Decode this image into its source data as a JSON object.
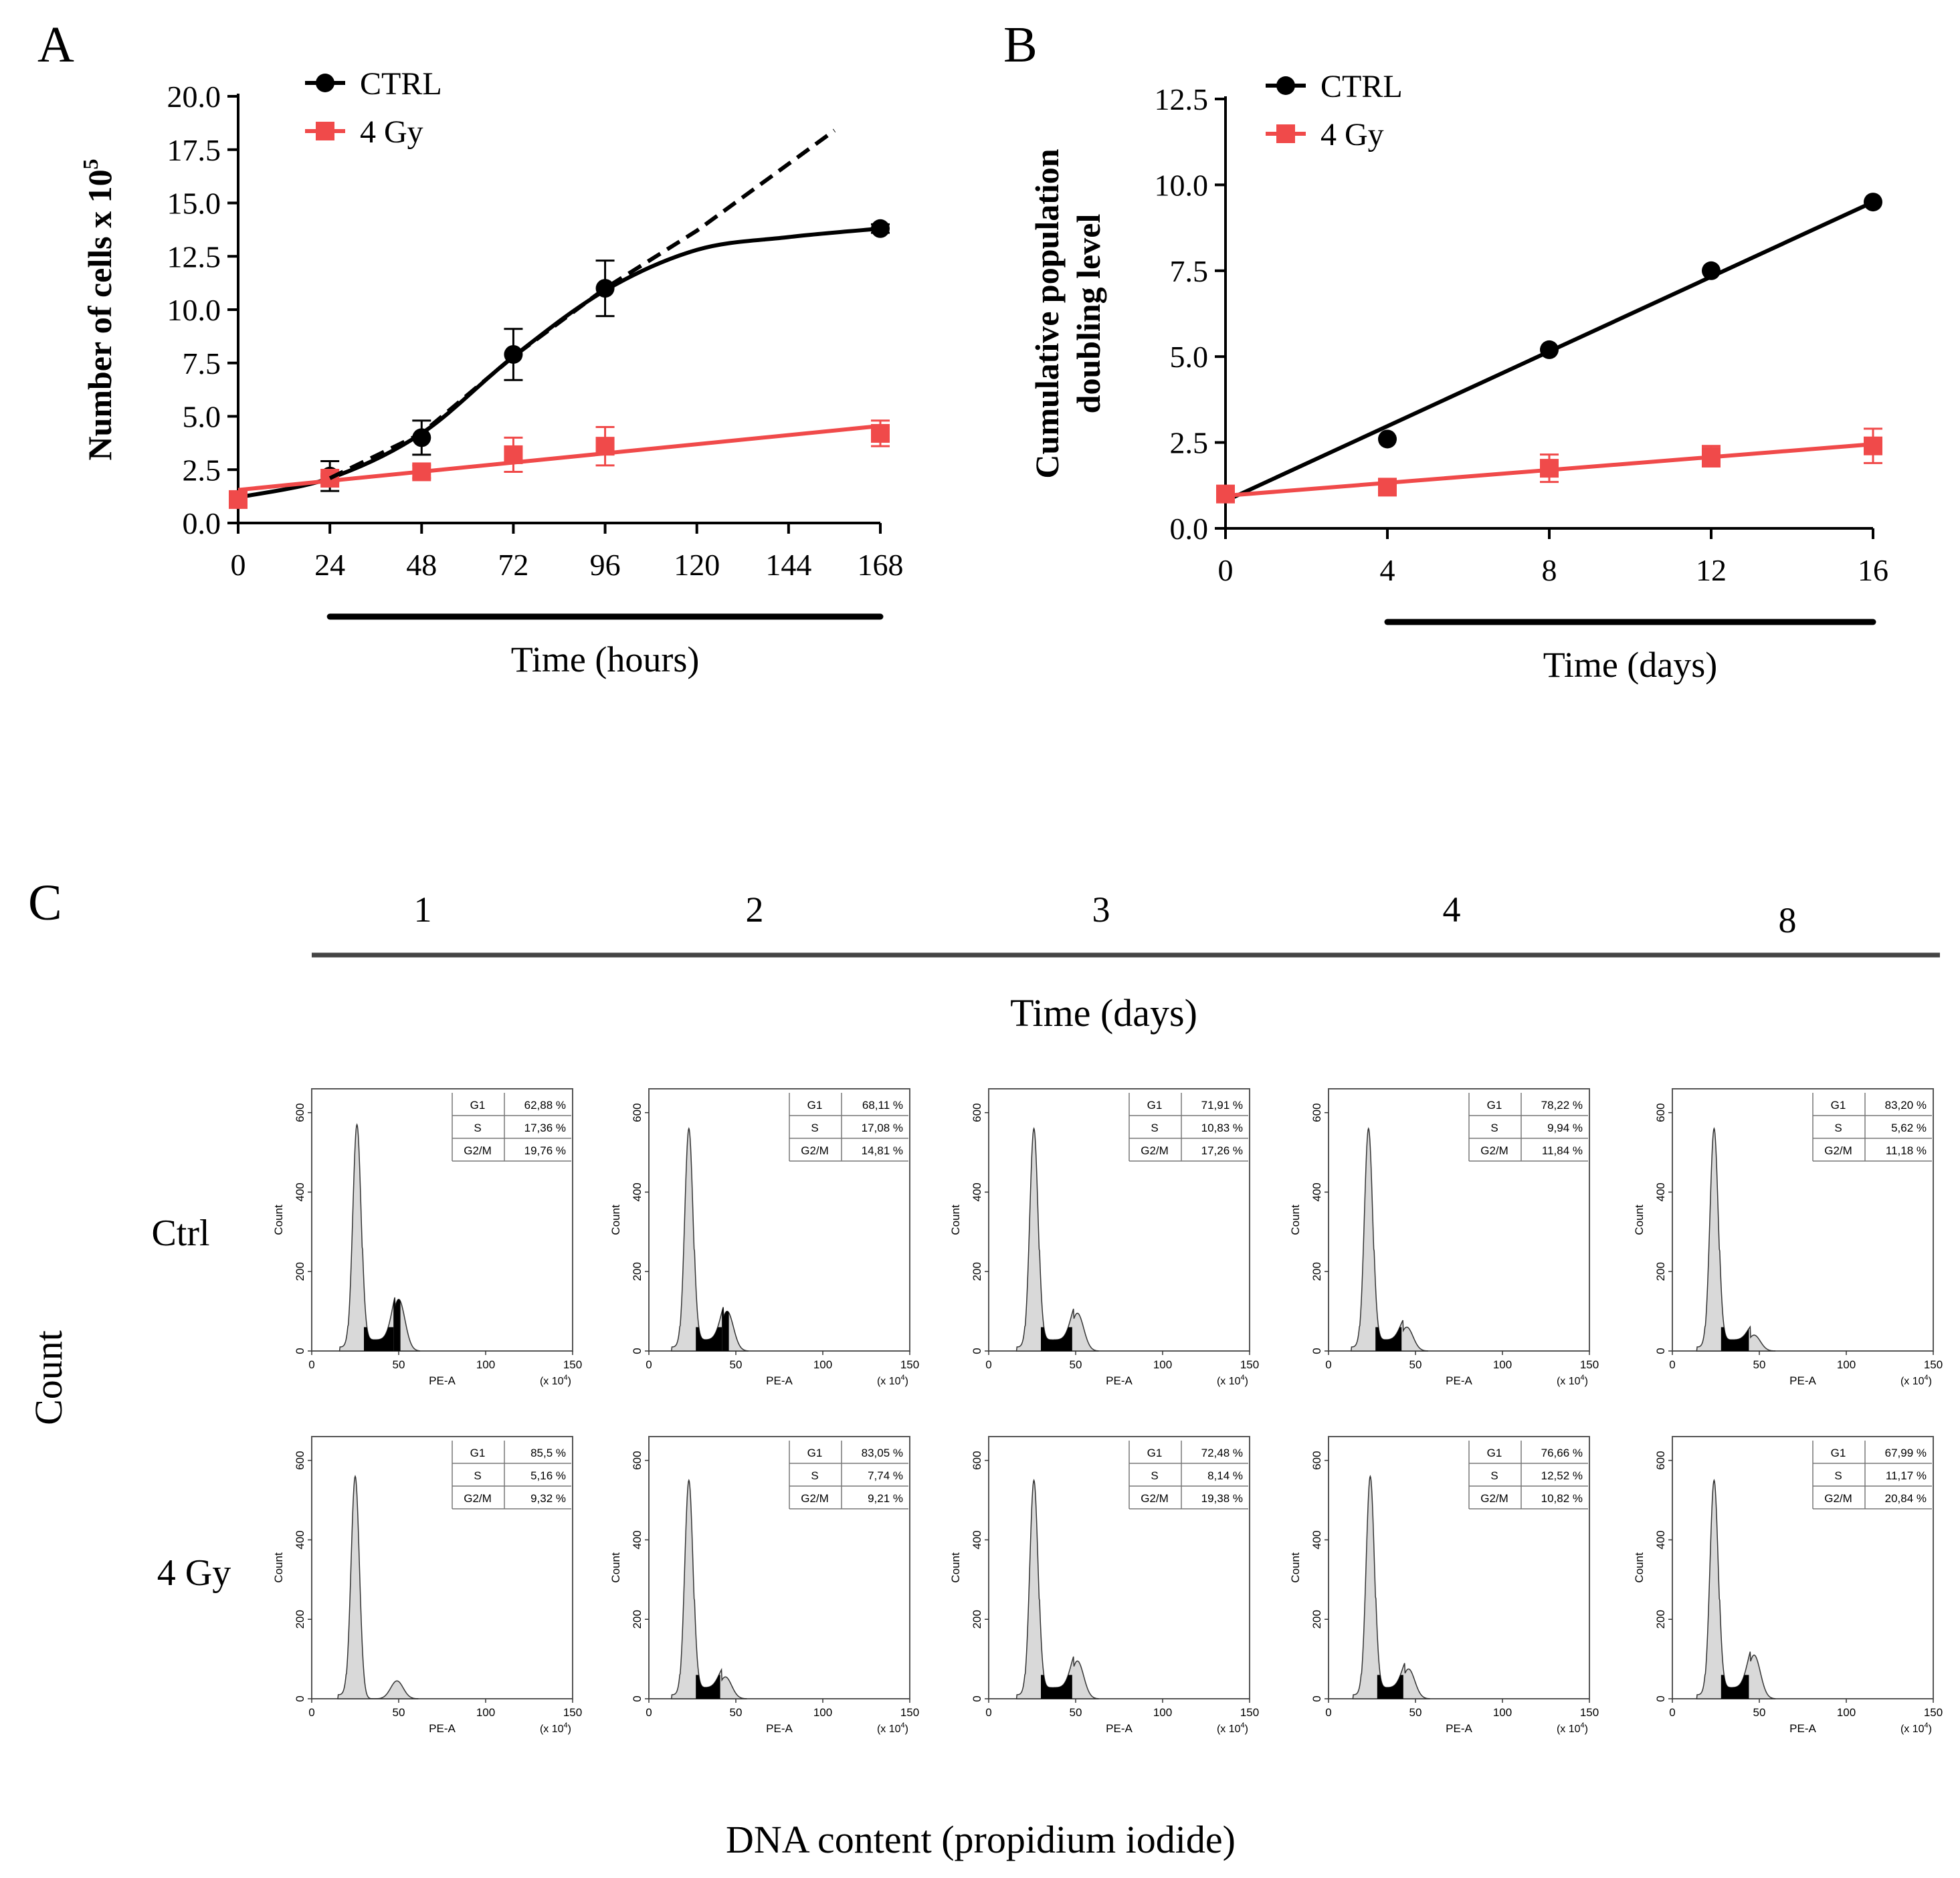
{
  "panel_labels": {
    "a": "A",
    "b": "B",
    "c": "C"
  },
  "colors": {
    "ctrl": "#000000",
    "gy": "#f04a4a",
    "fill_gray": "#d9d9d9",
    "fill_black": "#000000"
  },
  "chart_data": [
    {
      "id": "A",
      "type": "line",
      "title": "",
      "xlabel": "Time (hours)",
      "ylabel": "Number of cells x 10",
      "ylabel_sup": "5",
      "xlim": [
        0,
        168
      ],
      "ylim": [
        0,
        20
      ],
      "xticks": [
        "0",
        "24",
        "48",
        "72",
        "96",
        "120",
        "144",
        "168"
      ],
      "yticks": [
        "0.0",
        "2.5",
        "5.0",
        "7.5",
        "10.0",
        "12.5",
        "15.0",
        "17.5",
        "20.0"
      ],
      "x_bar_range": [
        24,
        168
      ],
      "legend": [
        "CTRL",
        "4 Gy"
      ],
      "series": [
        {
          "name": "CTRL",
          "x": [
            0,
            24,
            48,
            72,
            96,
            168
          ],
          "y": [
            1.1,
            2.2,
            4.0,
            7.9,
            11.0,
            13.8
          ],
          "err": [
            0.3,
            0.7,
            0.8,
            1.2,
            1.3,
            0.2
          ],
          "fit": "sigmoid",
          "fit_y": [
            1.2,
            2.1,
            4.2,
            7.8,
            10.9,
            12.8,
            13.4,
            13.8
          ],
          "fit_x": [
            0,
            24,
            48,
            72,
            96,
            120,
            144,
            168
          ]
        },
        {
          "name": "4 Gy",
          "x": [
            0,
            24,
            48,
            72,
            96,
            168
          ],
          "y": [
            1.1,
            2.1,
            2.4,
            3.2,
            3.6,
            4.2
          ],
          "err": [
            0.1,
            0.2,
            0.3,
            0.8,
            0.9,
            0.6
          ],
          "fit": "linear",
          "fit_y": [
            1.55,
            4.55
          ],
          "fit_x": [
            0,
            168
          ]
        },
        {
          "name": "exponential",
          "style": "dashed",
          "x": [
            24,
            48,
            72,
            96,
            120,
            156
          ],
          "y": [
            2.1,
            4.2,
            7.8,
            11.0,
            13.7,
            18.4
          ]
        }
      ]
    },
    {
      "id": "B",
      "type": "line",
      "title": "",
      "xlabel": "Time (days)",
      "ylabel_lines": [
        "Cumulative population",
        "doubling level"
      ],
      "xlim": [
        0,
        16
      ],
      "ylim": [
        0,
        12.5
      ],
      "xticks": [
        "0",
        "4",
        "8",
        "12",
        "16"
      ],
      "yticks": [
        "0.0",
        "2.5",
        "5.0",
        "7.5",
        "10.0",
        "12.5"
      ],
      "x_bar_range": [
        4,
        16
      ],
      "legend": [
        "CTRL",
        "4 Gy"
      ],
      "series": [
        {
          "name": "CTRL",
          "x": [
            0,
            4,
            8,
            12,
            16
          ],
          "y": [
            1.0,
            2.6,
            5.2,
            7.5,
            9.5
          ],
          "err": [
            0,
            0,
            0,
            0,
            0
          ],
          "fit": "linear",
          "fit_x": [
            0,
            16
          ],
          "fit_y": [
            0.8,
            9.5
          ]
        },
        {
          "name": "4 Gy",
          "x": [
            0,
            4,
            8,
            12,
            16
          ],
          "y": [
            1.0,
            1.2,
            1.75,
            2.1,
            2.4
          ],
          "err": [
            0.15,
            0.15,
            0.4,
            0.3,
            0.5
          ],
          "fit": "linear",
          "fit_x": [
            0,
            16
          ],
          "fit_y": [
            0.95,
            2.45
          ]
        }
      ]
    },
    {
      "id": "C",
      "type": "histogram",
      "time_label": "Time (days)",
      "days": [
        "1",
        "2",
        "3",
        "4",
        "8"
      ],
      "row_labels": [
        "Ctrl",
        "4 Gy"
      ],
      "y_axis_label": "Count",
      "x_axis_label": "DNA content (propidium iodide)",
      "hist_xlabel": "PE-A",
      "hist_ylabel": "Count",
      "hist_xunit": "(x 10",
      "hist_xunit_sup": "4",
      "hist_xunit_close": ")",
      "hist_xticks": [
        "0",
        "50",
        "100",
        "150"
      ],
      "hist_yticks": [
        "0",
        "200",
        "400",
        "600"
      ],
      "hist_xlim": [
        0,
        150
      ],
      "hist_ylim": [
        0,
        660
      ],
      "phase_names": [
        "G1",
        "S",
        "G2/M"
      ],
      "rows": [
        [
          {
            "g1": "62,88  %",
            "s": "17,36 %",
            "g2m": "19,76 %",
            "g1_peak": 570,
            "g2_peak": 130,
            "g1_pos": 26,
            "g2_pos": 50,
            "s_black": true,
            "g2_black": true
          },
          {
            "g1": "68,11 %",
            "s": "17,08 %",
            "g2m": "14,81 %",
            "g1_peak": 560,
            "g2_peak": 100,
            "g1_pos": 23,
            "g2_pos": 45,
            "s_black": true,
            "g2_black": true
          },
          {
            "g1": "71,91 %",
            "s": "10,83 %",
            "g2m": "17,26 %",
            "g1_peak": 560,
            "g2_peak": 95,
            "g1_pos": 26,
            "g2_pos": 51,
            "s_black": true,
            "g2_black": false
          },
          {
            "g1": "78,22 %",
            "s": "9,94 %",
            "g2m": "11,84 %",
            "g1_peak": 560,
            "g2_peak": 60,
            "g1_pos": 23,
            "g2_pos": 45,
            "s_black": true,
            "g2_black": false
          },
          {
            "g1": "83,20 %",
            "s": "5,62 %",
            "g2m": "11,18 %",
            "g1_peak": 560,
            "g2_peak": 40,
            "g1_pos": 24,
            "g2_pos": 47,
            "s_black": true,
            "g2_black": false
          }
        ],
        [
          {
            "g1": "85,5 %",
            "s": "5,16 %",
            "g2m": "9,32 %",
            "g1_peak": 560,
            "g2_peak": 45,
            "g1_pos": 25,
            "g2_pos": 49,
            "s_black": false,
            "g2_black": false
          },
          {
            "g1": "83,05 %",
            "s": "7,74 %",
            "g2m": "9,21 %",
            "g1_peak": 550,
            "g2_peak": 55,
            "g1_pos": 23,
            "g2_pos": 44,
            "s_black": true,
            "g2_black": false
          },
          {
            "g1": "72,48 %",
            "s": "8,14 %",
            "g2m": "19,38 %",
            "g1_peak": 550,
            "g2_peak": 95,
            "g1_pos": 26,
            "g2_pos": 51,
            "s_black": true,
            "g2_black": false
          },
          {
            "g1": "76,66 %",
            "s": "12,52 %",
            "g2m": "10,82 %",
            "g1_peak": 560,
            "g2_peak": 75,
            "g1_pos": 24,
            "g2_pos": 46,
            "s_black": true,
            "g2_black": false
          },
          {
            "g1": "67,99 %",
            "s": "11,17 %",
            "g2m": "20,84 %",
            "g1_peak": 550,
            "g2_peak": 110,
            "g1_pos": 24,
            "g2_pos": 47,
            "s_black": true,
            "g2_black": false
          }
        ]
      ]
    }
  ]
}
